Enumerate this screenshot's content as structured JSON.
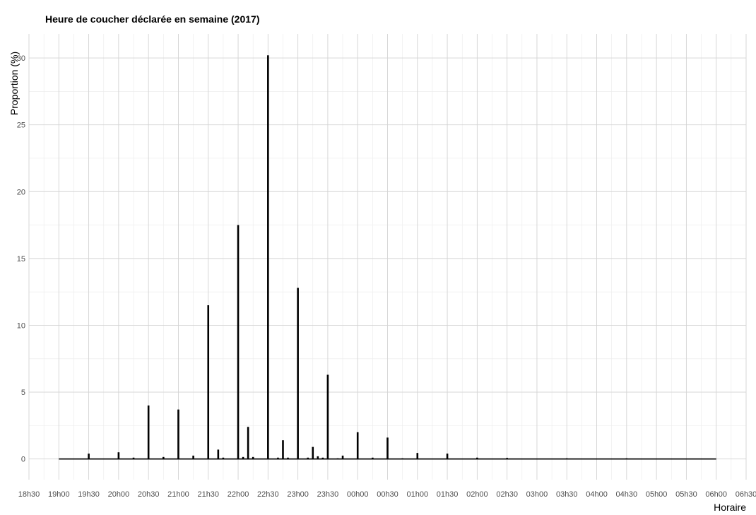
{
  "chart_data": {
    "type": "bar",
    "title": "Heure de coucher déclarée en semaine (2017)",
    "xlabel": "Horaire",
    "ylabel": "Proportion (%)",
    "x_unit": "minutes après 18h30",
    "xlim": [
      0,
      720
    ],
    "ylim": [
      -1.55,
      31.8
    ],
    "yticks": [
      0,
      5,
      10,
      15,
      20,
      25,
      30
    ],
    "xtick_labels": [
      "18h30",
      "19h00",
      "19h30",
      "20h00",
      "20h30",
      "21h00",
      "21h30",
      "22h00",
      "22h30",
      "23h00",
      "23h30",
      "00h00",
      "00h30",
      "01h00",
      "01h30",
      "02h00",
      "02h30",
      "03h00",
      "03h30",
      "04h00",
      "04h30",
      "05h00",
      "05h30",
      "06h00",
      "06h30"
    ],
    "grid": true,
    "legend": "none",
    "baseline": {
      "from": "19h00",
      "to": "06h00"
    },
    "series": [
      {
        "values": [
          {
            "x": 60,
            "y": 0.4
          },
          {
            "x": 90,
            "y": 0.5
          },
          {
            "x": 105,
            "y": 0.1
          },
          {
            "x": 120,
            "y": 4.0
          },
          {
            "x": 135,
            "y": 0.15
          },
          {
            "x": 150,
            "y": 3.7
          },
          {
            "x": 165,
            "y": 0.25
          },
          {
            "x": 180,
            "y": 11.5
          },
          {
            "x": 190,
            "y": 0.7
          },
          {
            "x": 195,
            "y": 0.1
          },
          {
            "x": 210,
            "y": 17.5
          },
          {
            "x": 215,
            "y": 0.15
          },
          {
            "x": 220,
            "y": 2.4
          },
          {
            "x": 225,
            "y": 0.15
          },
          {
            "x": 240,
            "y": 30.2
          },
          {
            "x": 250,
            "y": 0.1
          },
          {
            "x": 255,
            "y": 1.4
          },
          {
            "x": 260,
            "y": 0.1
          },
          {
            "x": 270,
            "y": 12.8
          },
          {
            "x": 280,
            "y": 0.1
          },
          {
            "x": 285,
            "y": 0.9
          },
          {
            "x": 290,
            "y": 0.2
          },
          {
            "x": 295,
            "y": 0.1
          },
          {
            "x": 300,
            "y": 6.3
          },
          {
            "x": 310,
            "y": 0.05
          },
          {
            "x": 315,
            "y": 0.25
          },
          {
            "x": 330,
            "y": 2.0
          },
          {
            "x": 345,
            "y": 0.1
          },
          {
            "x": 360,
            "y": 1.6
          },
          {
            "x": 375,
            "y": 0.05
          },
          {
            "x": 390,
            "y": 0.45
          },
          {
            "x": 420,
            "y": 0.4
          },
          {
            "x": 450,
            "y": 0.1
          },
          {
            "x": 480,
            "y": 0.08
          },
          {
            "x": 540,
            "y": 0.05
          },
          {
            "x": 600,
            "y": 0.05
          }
        ]
      }
    ]
  }
}
